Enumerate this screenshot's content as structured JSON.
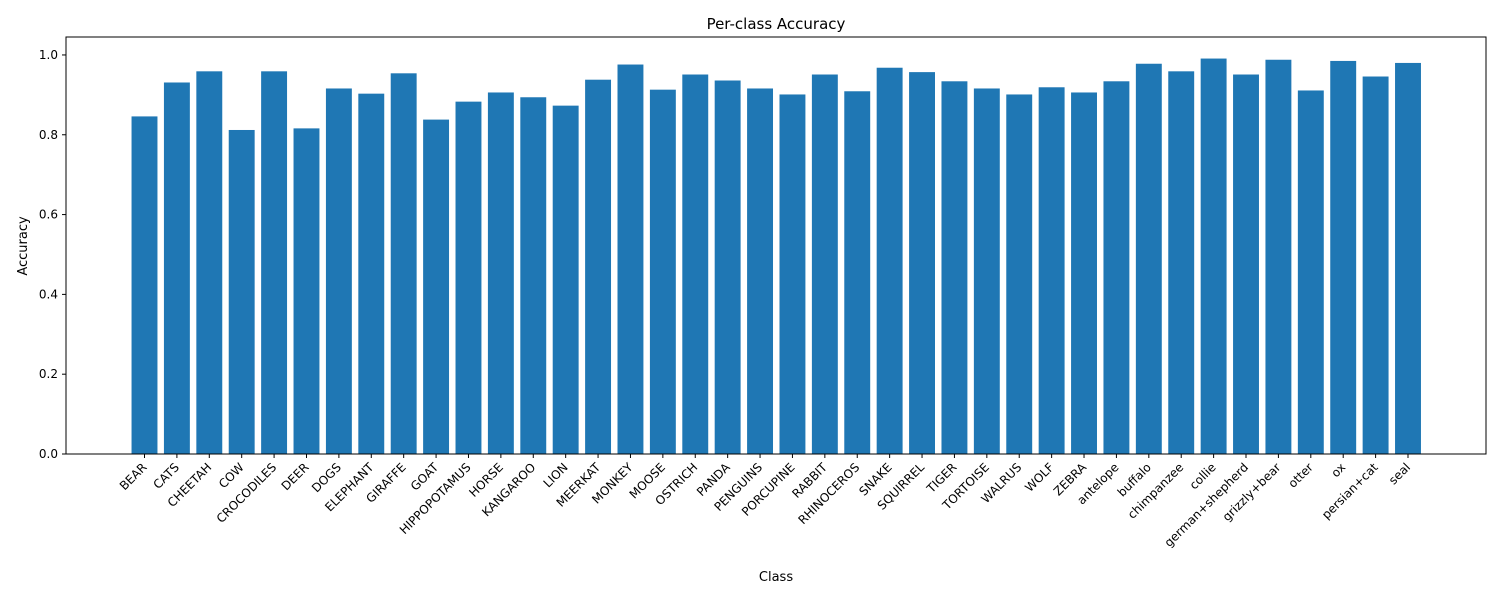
{
  "chart_data": {
    "type": "bar",
    "title": "Per-class Accuracy",
    "xlabel": "Class",
    "ylabel": "Accuracy",
    "ylim": [
      0,
      1.045
    ],
    "yticks": [
      "0.0",
      "0.2",
      "0.4",
      "0.6",
      "0.8",
      "1.0"
    ],
    "grid": false,
    "bar_color": "#1f77b4",
    "categories": [
      "BEAR",
      "CATS",
      "CHEETAH",
      "COW",
      "CROCODILES",
      "DEER",
      "DOGS",
      "ELEPHANT",
      "GIRAFFE",
      "GOAT",
      "HIPPOPOTAMUS",
      "HORSE",
      "KANGAROO",
      "LION",
      "MEERKAT",
      "MONKEY",
      "MOOSE",
      "OSTRICH",
      "PANDA",
      "PENGUINS",
      "PORCUPINE",
      "RABBIT",
      "RHINOCEROS",
      "SNAKE",
      "SQUIRREL",
      "TIGER",
      "TORTOISE",
      "WALRUS",
      "WOLF",
      "ZEBRA",
      "antelope",
      "buffalo",
      "chimpanzee",
      "collie",
      "german+shepherd",
      "grizzly+bear",
      "otter",
      "ox",
      "persian+cat",
      "seal"
    ],
    "values": [
      0.846,
      0.931,
      0.959,
      0.812,
      0.959,
      0.816,
      0.916,
      0.903,
      0.954,
      0.838,
      0.883,
      0.906,
      0.894,
      0.873,
      0.938,
      0.976,
      0.913,
      0.951,
      0.936,
      0.916,
      0.901,
      0.951,
      0.909,
      0.968,
      0.957,
      0.934,
      0.916,
      0.901,
      0.919,
      0.906,
      0.934,
      0.978,
      0.959,
      0.991,
      0.951,
      0.988,
      0.911,
      0.985,
      0.946,
      0.98
    ]
  }
}
